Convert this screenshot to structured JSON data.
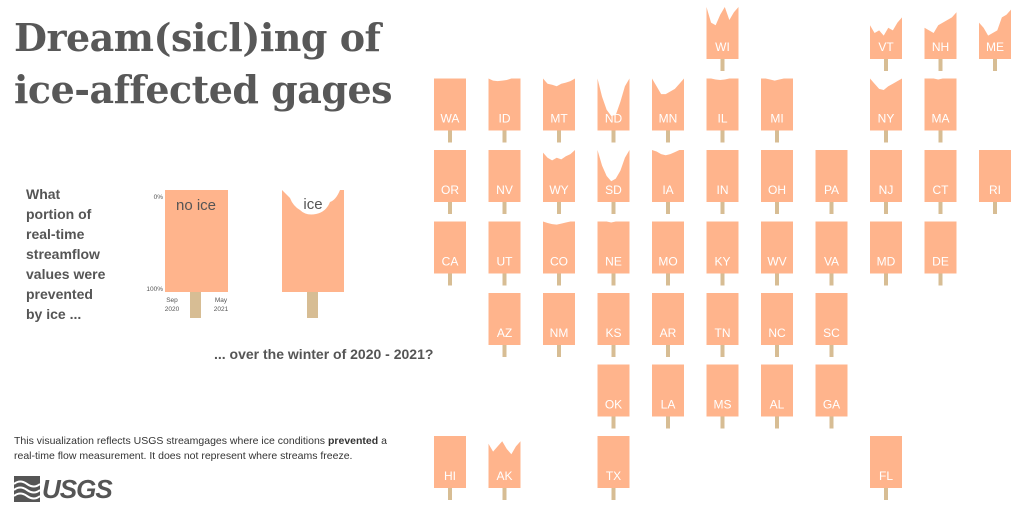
{
  "title": {
    "line1": "Dream(sicl)ing of",
    "line2": "ice-affected gages"
  },
  "question": {
    "lines": [
      "What",
      "portion of",
      "real-time",
      "streamflow",
      "values were",
      "prevented",
      "by ice ..."
    ],
    "continuation": "... over the winter of 2020 - 2021?"
  },
  "legend": {
    "no_ice_label": "no ice",
    "ice_label": "ice",
    "top_tick": "0%",
    "bottom_tick": "100%",
    "start_month": "Sep",
    "start_year": "2020",
    "end_month": "May",
    "end_year": "2021"
  },
  "disclaimer": {
    "before": "This visualization reflects USGS streamgages where ice conditions ",
    "bold": "prevented",
    "after": " a real-time flow measurement. It does not represent where streams freeze."
  },
  "logo": {
    "text": "USGS",
    "icon": "usgs-wave-icon"
  },
  "colors": {
    "pop": "#ffb48c",
    "stick": "#d7bd94",
    "title": "#585858",
    "text": "#555555"
  },
  "chart_data": {
    "type": "popsicle-tile-map",
    "description_of_values": "bite = share of real-time streamflow values prevented by ice (0 = no bite)",
    "states": [
      {
        "abbr": "WI",
        "col": 5,
        "row": 0,
        "bite": [
          0,
          0.3,
          0.35,
          0.15,
          0,
          0.25,
          0.1,
          0
        ]
      },
      {
        "abbr": "VT",
        "col": 8,
        "row": 0,
        "bite": [
          0.35,
          0.5,
          0.45,
          0.55,
          0.4,
          0.45,
          0.3,
          0.2
        ]
      },
      {
        "abbr": "NH",
        "col": 9,
        "row": 0,
        "bite": [
          0.4,
          0.45,
          0.5,
          0.35,
          0.3,
          0.25,
          0.2,
          0.1
        ]
      },
      {
        "abbr": "ME",
        "col": 10,
        "row": 0,
        "bite": [
          0.3,
          0.4,
          0.55,
          0.5,
          0.45,
          0.2,
          0.15,
          0.05
        ]
      },
      {
        "abbr": "WA",
        "col": 0,
        "row": 1,
        "bite": [
          0,
          0,
          0,
          0,
          0,
          0,
          0,
          0
        ]
      },
      {
        "abbr": "ID",
        "col": 1,
        "row": 1,
        "bite": [
          0,
          0.04,
          0.05,
          0.04,
          0.03,
          0,
          0,
          0
        ]
      },
      {
        "abbr": "MT",
        "col": 2,
        "row": 1,
        "bite": [
          0,
          0.1,
          0.12,
          0.15,
          0.1,
          0.08,
          0.05,
          0
        ]
      },
      {
        "abbr": "ND",
        "col": 3,
        "row": 1,
        "bite": [
          0,
          0.35,
          0.6,
          0.72,
          0.7,
          0.45,
          0.15,
          0
        ]
      },
      {
        "abbr": "MN",
        "col": 4,
        "row": 1,
        "bite": [
          0,
          0.15,
          0.3,
          0.3,
          0.25,
          0.2,
          0.1,
          0
        ]
      },
      {
        "abbr": "IL",
        "col": 5,
        "row": 1,
        "bite": [
          0,
          0,
          0.02,
          0.03,
          0.02,
          0,
          0,
          0
        ]
      },
      {
        "abbr": "MI",
        "col": 6,
        "row": 1,
        "bite": [
          0,
          0,
          0.02,
          0.04,
          0.02,
          0,
          0,
          0
        ]
      },
      {
        "abbr": "NY",
        "col": 8,
        "row": 1,
        "bite": [
          0,
          0.1,
          0.2,
          0.22,
          0.15,
          0.1,
          0.05,
          0
        ]
      },
      {
        "abbr": "MA",
        "col": 9,
        "row": 1,
        "bite": [
          0,
          0,
          0,
          0.02,
          0,
          0,
          0,
          0
        ]
      },
      {
        "abbr": "OR",
        "col": 0,
        "row": 2,
        "bite": [
          0,
          0,
          0,
          0,
          0,
          0,
          0,
          0
        ]
      },
      {
        "abbr": "NV",
        "col": 1,
        "row": 2,
        "bite": [
          0,
          0,
          0,
          0,
          0,
          0,
          0,
          0
        ]
      },
      {
        "abbr": "WY",
        "col": 2,
        "row": 2,
        "bite": [
          0.05,
          0.15,
          0.2,
          0.15,
          0.18,
          0.12,
          0.08,
          0
        ]
      },
      {
        "abbr": "SD",
        "col": 3,
        "row": 2,
        "bite": [
          0,
          0.3,
          0.5,
          0.6,
          0.55,
          0.4,
          0.15,
          0
        ]
      },
      {
        "abbr": "IA",
        "col": 4,
        "row": 2,
        "bite": [
          0,
          0.03,
          0.08,
          0.1,
          0.08,
          0.04,
          0,
          0
        ]
      },
      {
        "abbr": "IN",
        "col": 5,
        "row": 2,
        "bite": [
          0,
          0,
          0,
          0,
          0,
          0,
          0,
          0
        ]
      },
      {
        "abbr": "OH",
        "col": 6,
        "row": 2,
        "bite": [
          0,
          0,
          0,
          0,
          0,
          0,
          0,
          0
        ]
      },
      {
        "abbr": "PA",
        "col": 7,
        "row": 2,
        "bite": [
          0,
          0,
          0,
          0,
          0,
          0,
          0,
          0
        ]
      },
      {
        "abbr": "NJ",
        "col": 8,
        "row": 2,
        "bite": [
          0,
          0,
          0,
          0,
          0,
          0,
          0,
          0
        ]
      },
      {
        "abbr": "CT",
        "col": 9,
        "row": 2,
        "bite": [
          0,
          0,
          0,
          0,
          0,
          0,
          0,
          0
        ]
      },
      {
        "abbr": "RI",
        "col": 10,
        "row": 2,
        "bite": [
          0,
          0,
          0,
          0,
          0,
          0,
          0,
          0
        ]
      },
      {
        "abbr": "CA",
        "col": 0,
        "row": 3,
        "bite": [
          0,
          0,
          0,
          0,
          0,
          0,
          0,
          0
        ]
      },
      {
        "abbr": "UT",
        "col": 1,
        "row": 3,
        "bite": [
          0,
          0,
          0,
          0,
          0,
          0,
          0,
          0
        ]
      },
      {
        "abbr": "CO",
        "col": 2,
        "row": 3,
        "bite": [
          0,
          0.03,
          0.05,
          0.06,
          0.04,
          0.02,
          0,
          0
        ]
      },
      {
        "abbr": "NE",
        "col": 3,
        "row": 3,
        "bite": [
          0,
          0,
          0,
          0.02,
          0,
          0,
          0,
          0
        ]
      },
      {
        "abbr": "MO",
        "col": 4,
        "row": 3,
        "bite": [
          0,
          0,
          0,
          0,
          0,
          0,
          0,
          0
        ]
      },
      {
        "abbr": "KY",
        "col": 5,
        "row": 3,
        "bite": [
          0,
          0,
          0,
          0,
          0,
          0,
          0,
          0
        ]
      },
      {
        "abbr": "WV",
        "col": 6,
        "row": 3,
        "bite": [
          0,
          0,
          0,
          0,
          0,
          0,
          0,
          0
        ]
      },
      {
        "abbr": "VA",
        "col": 7,
        "row": 3,
        "bite": [
          0,
          0,
          0,
          0,
          0,
          0,
          0,
          0
        ]
      },
      {
        "abbr": "MD",
        "col": 8,
        "row": 3,
        "bite": [
          0,
          0,
          0,
          0,
          0,
          0,
          0,
          0
        ]
      },
      {
        "abbr": "DE",
        "col": 9,
        "row": 3,
        "bite": [
          0,
          0,
          0,
          0,
          0,
          0,
          0,
          0
        ]
      },
      {
        "abbr": "AZ",
        "col": 1,
        "row": 4,
        "bite": [
          0,
          0,
          0,
          0,
          0,
          0,
          0,
          0
        ]
      },
      {
        "abbr": "NM",
        "col": 2,
        "row": 4,
        "bite": [
          0,
          0,
          0,
          0,
          0,
          0,
          0,
          0
        ]
      },
      {
        "abbr": "KS",
        "col": 3,
        "row": 4,
        "bite": [
          0,
          0,
          0,
          0,
          0,
          0,
          0,
          0
        ]
      },
      {
        "abbr": "AR",
        "col": 4,
        "row": 4,
        "bite": [
          0,
          0,
          0,
          0,
          0,
          0,
          0,
          0
        ]
      },
      {
        "abbr": "TN",
        "col": 5,
        "row": 4,
        "bite": [
          0,
          0,
          0,
          0,
          0,
          0,
          0,
          0
        ]
      },
      {
        "abbr": "NC",
        "col": 6,
        "row": 4,
        "bite": [
          0,
          0,
          0,
          0,
          0,
          0,
          0,
          0
        ]
      },
      {
        "abbr": "SC",
        "col": 7,
        "row": 4,
        "bite": [
          0,
          0,
          0,
          0,
          0,
          0,
          0,
          0
        ]
      },
      {
        "abbr": "OK",
        "col": 3,
        "row": 5,
        "bite": [
          0,
          0,
          0,
          0,
          0,
          0,
          0,
          0
        ]
      },
      {
        "abbr": "LA",
        "col": 4,
        "row": 5,
        "bite": [
          0,
          0,
          0,
          0,
          0,
          0,
          0,
          0
        ]
      },
      {
        "abbr": "MS",
        "col": 5,
        "row": 5,
        "bite": [
          0,
          0,
          0,
          0,
          0,
          0,
          0,
          0
        ]
      },
      {
        "abbr": "AL",
        "col": 6,
        "row": 5,
        "bite": [
          0,
          0,
          0,
          0,
          0,
          0,
          0,
          0
        ]
      },
      {
        "abbr": "GA",
        "col": 7,
        "row": 5,
        "bite": [
          0,
          0,
          0,
          0,
          0,
          0,
          0,
          0
        ]
      },
      {
        "abbr": "HI",
        "col": 0,
        "row": 6,
        "bite": [
          0,
          0,
          0,
          0,
          0,
          0,
          0,
          0
        ]
      },
      {
        "abbr": "AK",
        "col": 1,
        "row": 6,
        "bite": [
          0.15,
          0.3,
          0.2,
          0.1,
          0.25,
          0.35,
          0.2,
          0.1
        ]
      },
      {
        "abbr": "TX",
        "col": 3,
        "row": 6,
        "bite": [
          0,
          0,
          0,
          0,
          0,
          0,
          0,
          0
        ]
      },
      {
        "abbr": "FL",
        "col": 8,
        "row": 6,
        "bite": [
          0,
          0,
          0,
          0,
          0,
          0,
          0,
          0
        ]
      }
    ]
  }
}
